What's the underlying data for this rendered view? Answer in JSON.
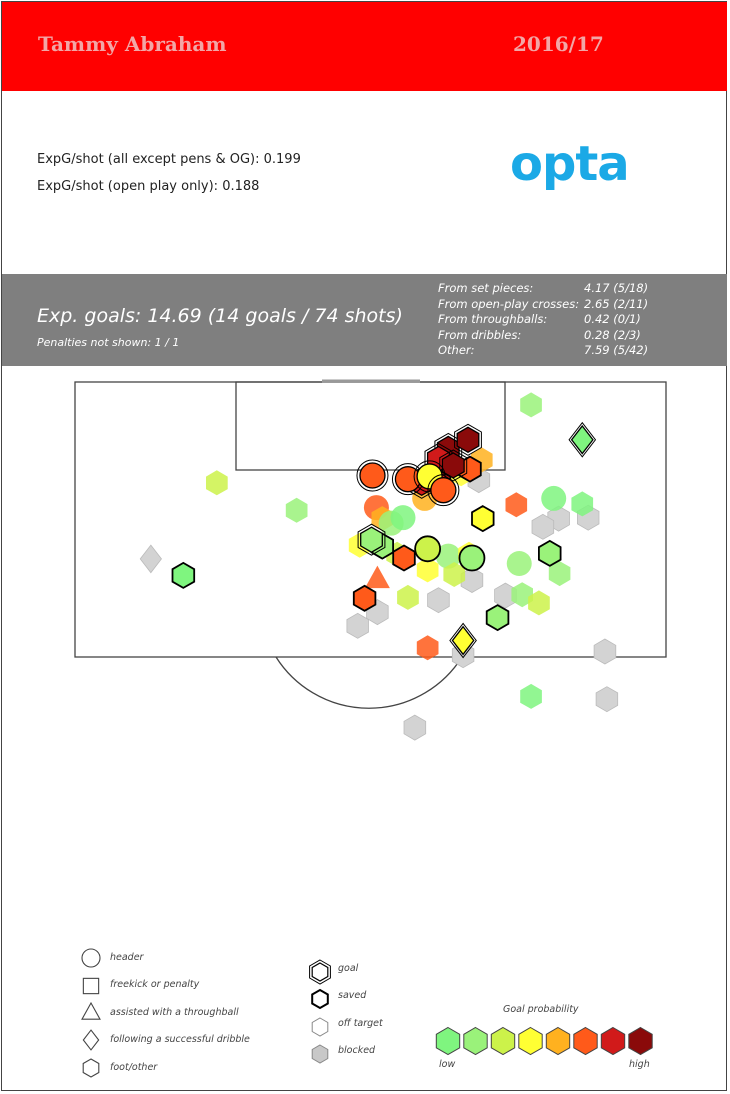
{
  "header": {
    "player": "Tammy Abraham",
    "season": "2016/17",
    "color": "#ff0000"
  },
  "stats": {
    "line1": "ExpG/shot (all except pens & OG): 0.199",
    "line2": "ExpG/shot (open play only): 0.188",
    "brand": "opta"
  },
  "summary": {
    "main": "Exp. goals: 14.69 (14 goals / 74 shots)",
    "penalties": "Penalties not shown: 1 / 1",
    "breakdown": [
      {
        "label": "From set pieces:",
        "value": "4.17 (5/18)"
      },
      {
        "label": "From open-play crosses:",
        "value": "2.65 (2/11)"
      },
      {
        "label": "From throughballs:",
        "value": "0.42 (0/1)"
      },
      {
        "label": "From dribbles:",
        "value": "0.28 (2/3)"
      },
      {
        "label": "Other:",
        "value": "7.59 (5/42)"
      }
    ]
  },
  "legend": {
    "shapes": [
      {
        "label": "header",
        "icon": "circle"
      },
      {
        "label": "freekick or penalty",
        "icon": "square"
      },
      {
        "label": "assisted with a throughball",
        "icon": "triangle"
      },
      {
        "label": "following a successful dribble",
        "icon": "diamond"
      },
      {
        "label": "foot/other",
        "icon": "hexagon"
      }
    ],
    "outcomes": [
      {
        "label": "goal",
        "icon": "double-outline-hexagon"
      },
      {
        "label": "saved",
        "icon": "bold-outline-hexagon"
      },
      {
        "label": "off target",
        "icon": "white-hexagon"
      },
      {
        "label": "blocked",
        "icon": "grey-hexagon"
      }
    ],
    "scale_title": "Goal probability",
    "scale_low": "low",
    "scale_high": "high",
    "scale_colors": [
      "#7ff57f",
      "#9af27a",
      "#ccf24a",
      "#ffff33",
      "#ffb11f",
      "#ff5a1a",
      "#d11a1a",
      "#8a0a0a"
    ]
  },
  "colors": {
    "band": "#7f7f7f",
    "blocked": "#d3d3d3",
    "off_target": "#ffffff"
  },
  "chart_data": {
    "type": "scatter",
    "title": "",
    "xlabel": "",
    "ylabel": "",
    "x_unit": "yards across pitch (0 = left touchline of box view)",
    "y_unit": "yards from goal line",
    "points": [
      {
        "x": 37.9,
        "y": 7.3,
        "shape": "hexagon",
        "outcome": "goal",
        "level": 7
      },
      {
        "x": 39.9,
        "y": 6.3,
        "shape": "hexagon",
        "outcome": "goal",
        "level": 7
      },
      {
        "x": 36.9,
        "y": 8.4,
        "shape": "hexagon",
        "outcome": "goal",
        "level": 6
      },
      {
        "x": 38.4,
        "y": 9.1,
        "shape": "hexagon",
        "outcome": "goal",
        "level": 7
      },
      {
        "x": 40.1,
        "y": 9.5,
        "shape": "hexagon",
        "outcome": "saved",
        "level": 5
      },
      {
        "x": 35.2,
        "y": 11.0,
        "shape": "hexagon",
        "outcome": "goal",
        "level": 6
      },
      {
        "x": 37.0,
        "y": 11.0,
        "shape": "hexagon",
        "outcome": "saved",
        "level": 6
      },
      {
        "x": 41.3,
        "y": 8.5,
        "shape": "hexagon",
        "outcome": "off",
        "level": 4
      },
      {
        "x": 39.2,
        "y": 10.0,
        "shape": "hexagon",
        "outcome": "off",
        "level": 3
      },
      {
        "x": 41.0,
        "y": 10.7,
        "shape": "hexagon",
        "outcome": "blocked",
        "level": 0
      },
      {
        "x": 33.8,
        "y": 10.6,
        "shape": "circle",
        "outcome": "goal",
        "level": 5
      },
      {
        "x": 36.0,
        "y": 10.3,
        "shape": "circle",
        "outcome": "goal",
        "level": 3
      },
      {
        "x": 37.4,
        "y": 11.8,
        "shape": "circle",
        "outcome": "goal",
        "level": 5
      },
      {
        "x": 35.5,
        "y": 12.7,
        "shape": "circle",
        "outcome": "off",
        "level": 4
      },
      {
        "x": 30.2,
        "y": 10.2,
        "shape": "circle",
        "outcome": "goal",
        "level": 5
      },
      {
        "x": 30.6,
        "y": 13.7,
        "shape": "circle",
        "outcome": "off",
        "level": 5
      },
      {
        "x": 31.2,
        "y": 14.9,
        "shape": "hexagon",
        "outcome": "off",
        "level": 4
      },
      {
        "x": 32.1,
        "y": 15.4,
        "shape": "circle",
        "outcome": "off",
        "level": 1
      },
      {
        "x": 33.3,
        "y": 14.8,
        "shape": "circle",
        "outcome": "off",
        "level": 0
      },
      {
        "x": 41.4,
        "y": 14.9,
        "shape": "hexagon",
        "outcome": "saved",
        "level": 3
      },
      {
        "x": 44.8,
        "y": 13.4,
        "shape": "hexagon",
        "outcome": "off",
        "level": 5
      },
      {
        "x": 48.6,
        "y": 12.7,
        "shape": "circle",
        "outcome": "off",
        "level": 0
      },
      {
        "x": 49.1,
        "y": 14.9,
        "shape": "hexagon",
        "outcome": "blocked",
        "level": 0
      },
      {
        "x": 47.5,
        "y": 15.8,
        "shape": "hexagon",
        "outcome": "blocked",
        "level": 0
      },
      {
        "x": 22.5,
        "y": 14.0,
        "shape": "hexagon",
        "outcome": "off",
        "level": 1
      },
      {
        "x": 14.4,
        "y": 11.0,
        "shape": "hexagon",
        "outcome": "off",
        "level": 2
      },
      {
        "x": 30.1,
        "y": 17.2,
        "shape": "hexagon",
        "outcome": "goal",
        "level": 1
      },
      {
        "x": 28.9,
        "y": 17.8,
        "shape": "hexagon",
        "outcome": "off",
        "level": 3
      },
      {
        "x": 31.2,
        "y": 17.9,
        "shape": "hexagon",
        "outcome": "saved",
        "level": 1
      },
      {
        "x": 32.7,
        "y": 18.8,
        "shape": "hexagon",
        "outcome": "off",
        "level": 2
      },
      {
        "x": 33.4,
        "y": 19.2,
        "shape": "hexagon",
        "outcome": "saved",
        "level": 5
      },
      {
        "x": 35.8,
        "y": 18.2,
        "shape": "circle",
        "outcome": "saved",
        "level": 2
      },
      {
        "x": 37.9,
        "y": 19.0,
        "shape": "circle",
        "outcome": "off",
        "level": 1
      },
      {
        "x": 40.0,
        "y": 18.8,
        "shape": "hexagon",
        "outcome": "off",
        "level": 3
      },
      {
        "x": 40.3,
        "y": 19.2,
        "shape": "circle",
        "outcome": "saved",
        "level": 1
      },
      {
        "x": 35.8,
        "y": 20.5,
        "shape": "hexagon",
        "outcome": "off",
        "level": 3
      },
      {
        "x": 38.5,
        "y": 21.0,
        "shape": "hexagon",
        "outcome": "off",
        "level": 2
      },
      {
        "x": 40.3,
        "y": 21.6,
        "shape": "hexagon",
        "outcome": "blocked",
        "level": 0
      },
      {
        "x": 45.1,
        "y": 19.8,
        "shape": "circle",
        "outcome": "off",
        "level": 1
      },
      {
        "x": 48.2,
        "y": 18.7,
        "shape": "hexagon",
        "outcome": "saved",
        "level": 1
      },
      {
        "x": 49.2,
        "y": 20.9,
        "shape": "hexagon",
        "outcome": "off",
        "level": 1
      },
      {
        "x": 45.4,
        "y": 23.2,
        "shape": "hexagon",
        "outcome": "off",
        "level": 1
      },
      {
        "x": 43.7,
        "y": 23.3,
        "shape": "hexagon",
        "outcome": "blocked",
        "level": 0
      },
      {
        "x": 47.1,
        "y": 24.1,
        "shape": "hexagon",
        "outcome": "off",
        "level": 2
      },
      {
        "x": 30.7,
        "y": 21.4,
        "shape": "triangle",
        "outcome": "off",
        "level": 5
      },
      {
        "x": 29.4,
        "y": 23.6,
        "shape": "hexagon",
        "outcome": "saved",
        "level": 5
      },
      {
        "x": 30.7,
        "y": 25.1,
        "shape": "hexagon",
        "outcome": "blocked",
        "level": 0
      },
      {
        "x": 33.8,
        "y": 23.5,
        "shape": "hexagon",
        "outcome": "off",
        "level": 2
      },
      {
        "x": 36.9,
        "y": 23.8,
        "shape": "hexagon",
        "outcome": "blocked",
        "level": 0
      },
      {
        "x": 28.7,
        "y": 26.6,
        "shape": "hexagon",
        "outcome": "blocked",
        "level": 0
      },
      {
        "x": 42.9,
        "y": 25.7,
        "shape": "hexagon",
        "outcome": "saved",
        "level": 1
      },
      {
        "x": 35.8,
        "y": 29.0,
        "shape": "hexagon",
        "outcome": "off",
        "level": 5
      },
      {
        "x": 39.4,
        "y": 29.8,
        "shape": "hexagon",
        "outcome": "blocked",
        "level": 0
      },
      {
        "x": 39.4,
        "y": 28.2,
        "shape": "diamond",
        "outcome": "goal",
        "level": 3
      },
      {
        "x": 53.8,
        "y": 29.4,
        "shape": "hexagon",
        "outcome": "blocked",
        "level": 0
      },
      {
        "x": 11.0,
        "y": 21.1,
        "shape": "hexagon",
        "outcome": "saved",
        "level": 0
      },
      {
        "x": 7.7,
        "y": 19.3,
        "shape": "diamond",
        "outcome": "blocked",
        "level": 0
      },
      {
        "x": 46.3,
        "y": 2.5,
        "shape": "hexagon",
        "outcome": "off",
        "level": 1
      },
      {
        "x": 51.5,
        "y": 6.3,
        "shape": "diamond",
        "outcome": "goal",
        "level": 0
      },
      {
        "x": 51.5,
        "y": 13.3,
        "shape": "hexagon",
        "outcome": "off",
        "level": 0
      },
      {
        "x": 52.1,
        "y": 14.8,
        "shape": "hexagon",
        "outcome": "blocked",
        "level": 0
      },
      {
        "x": 46.3,
        "y": 34.3,
        "shape": "hexagon",
        "outcome": "off",
        "level": 0
      },
      {
        "x": 54.0,
        "y": 34.6,
        "shape": "hexagon",
        "outcome": "blocked",
        "level": 0
      },
      {
        "x": 34.5,
        "y": 37.7,
        "shape": "hexagon",
        "outcome": "blocked",
        "level": 0
      }
    ]
  }
}
